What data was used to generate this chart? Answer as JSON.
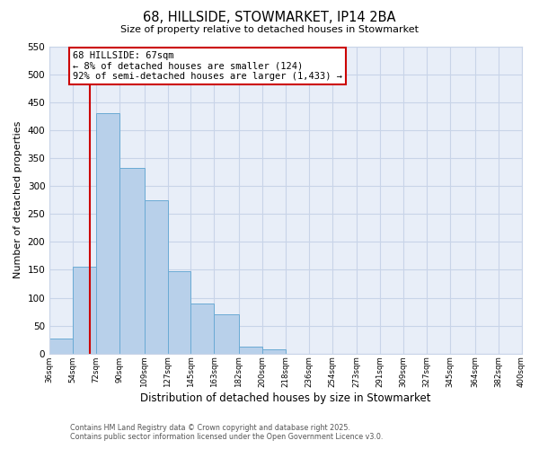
{
  "title": "68, HILLSIDE, STOWMARKET, IP14 2BA",
  "subtitle": "Size of property relative to detached houses in Stowmarket",
  "xlabel": "Distribution of detached houses by size in Stowmarket",
  "ylabel": "Number of detached properties",
  "bin_labels": [
    "36sqm",
    "54sqm",
    "72sqm",
    "90sqm",
    "109sqm",
    "127sqm",
    "145sqm",
    "163sqm",
    "182sqm",
    "200sqm",
    "218sqm",
    "236sqm",
    "254sqm",
    "273sqm",
    "291sqm",
    "309sqm",
    "327sqm",
    "345sqm",
    "364sqm",
    "382sqm",
    "400sqm"
  ],
  "bin_edges": [
    36,
    54,
    72,
    90,
    109,
    127,
    145,
    163,
    182,
    200,
    218,
    236,
    254,
    273,
    291,
    309,
    327,
    345,
    364,
    382,
    400
  ],
  "bar_heights": [
    27,
    155,
    430,
    332,
    275,
    148,
    90,
    70,
    12,
    8,
    0,
    0,
    0,
    0,
    0,
    0,
    0,
    0,
    0,
    0
  ],
  "bar_color": "#b8d0ea",
  "bar_edge_color": "#6aaad4",
  "vline_x": 67,
  "vline_color": "#cc0000",
  "annotation_line1": "68 HILLSIDE: 67sqm",
  "annotation_line2": "← 8% of detached houses are smaller (124)",
  "annotation_line3": "92% of semi-detached houses are larger (1,433) →",
  "annotation_box_color": "#ffffff",
  "annotation_box_edge": "#cc0000",
  "ylim": [
    0,
    550
  ],
  "yticks": [
    0,
    50,
    100,
    150,
    200,
    250,
    300,
    350,
    400,
    450,
    500,
    550
  ],
  "bg_color": "#e8eef8",
  "grid_color": "#c8d4e8",
  "footer1": "Contains HM Land Registry data © Crown copyright and database right 2025.",
  "footer2": "Contains public sector information licensed under the Open Government Licence v3.0."
}
